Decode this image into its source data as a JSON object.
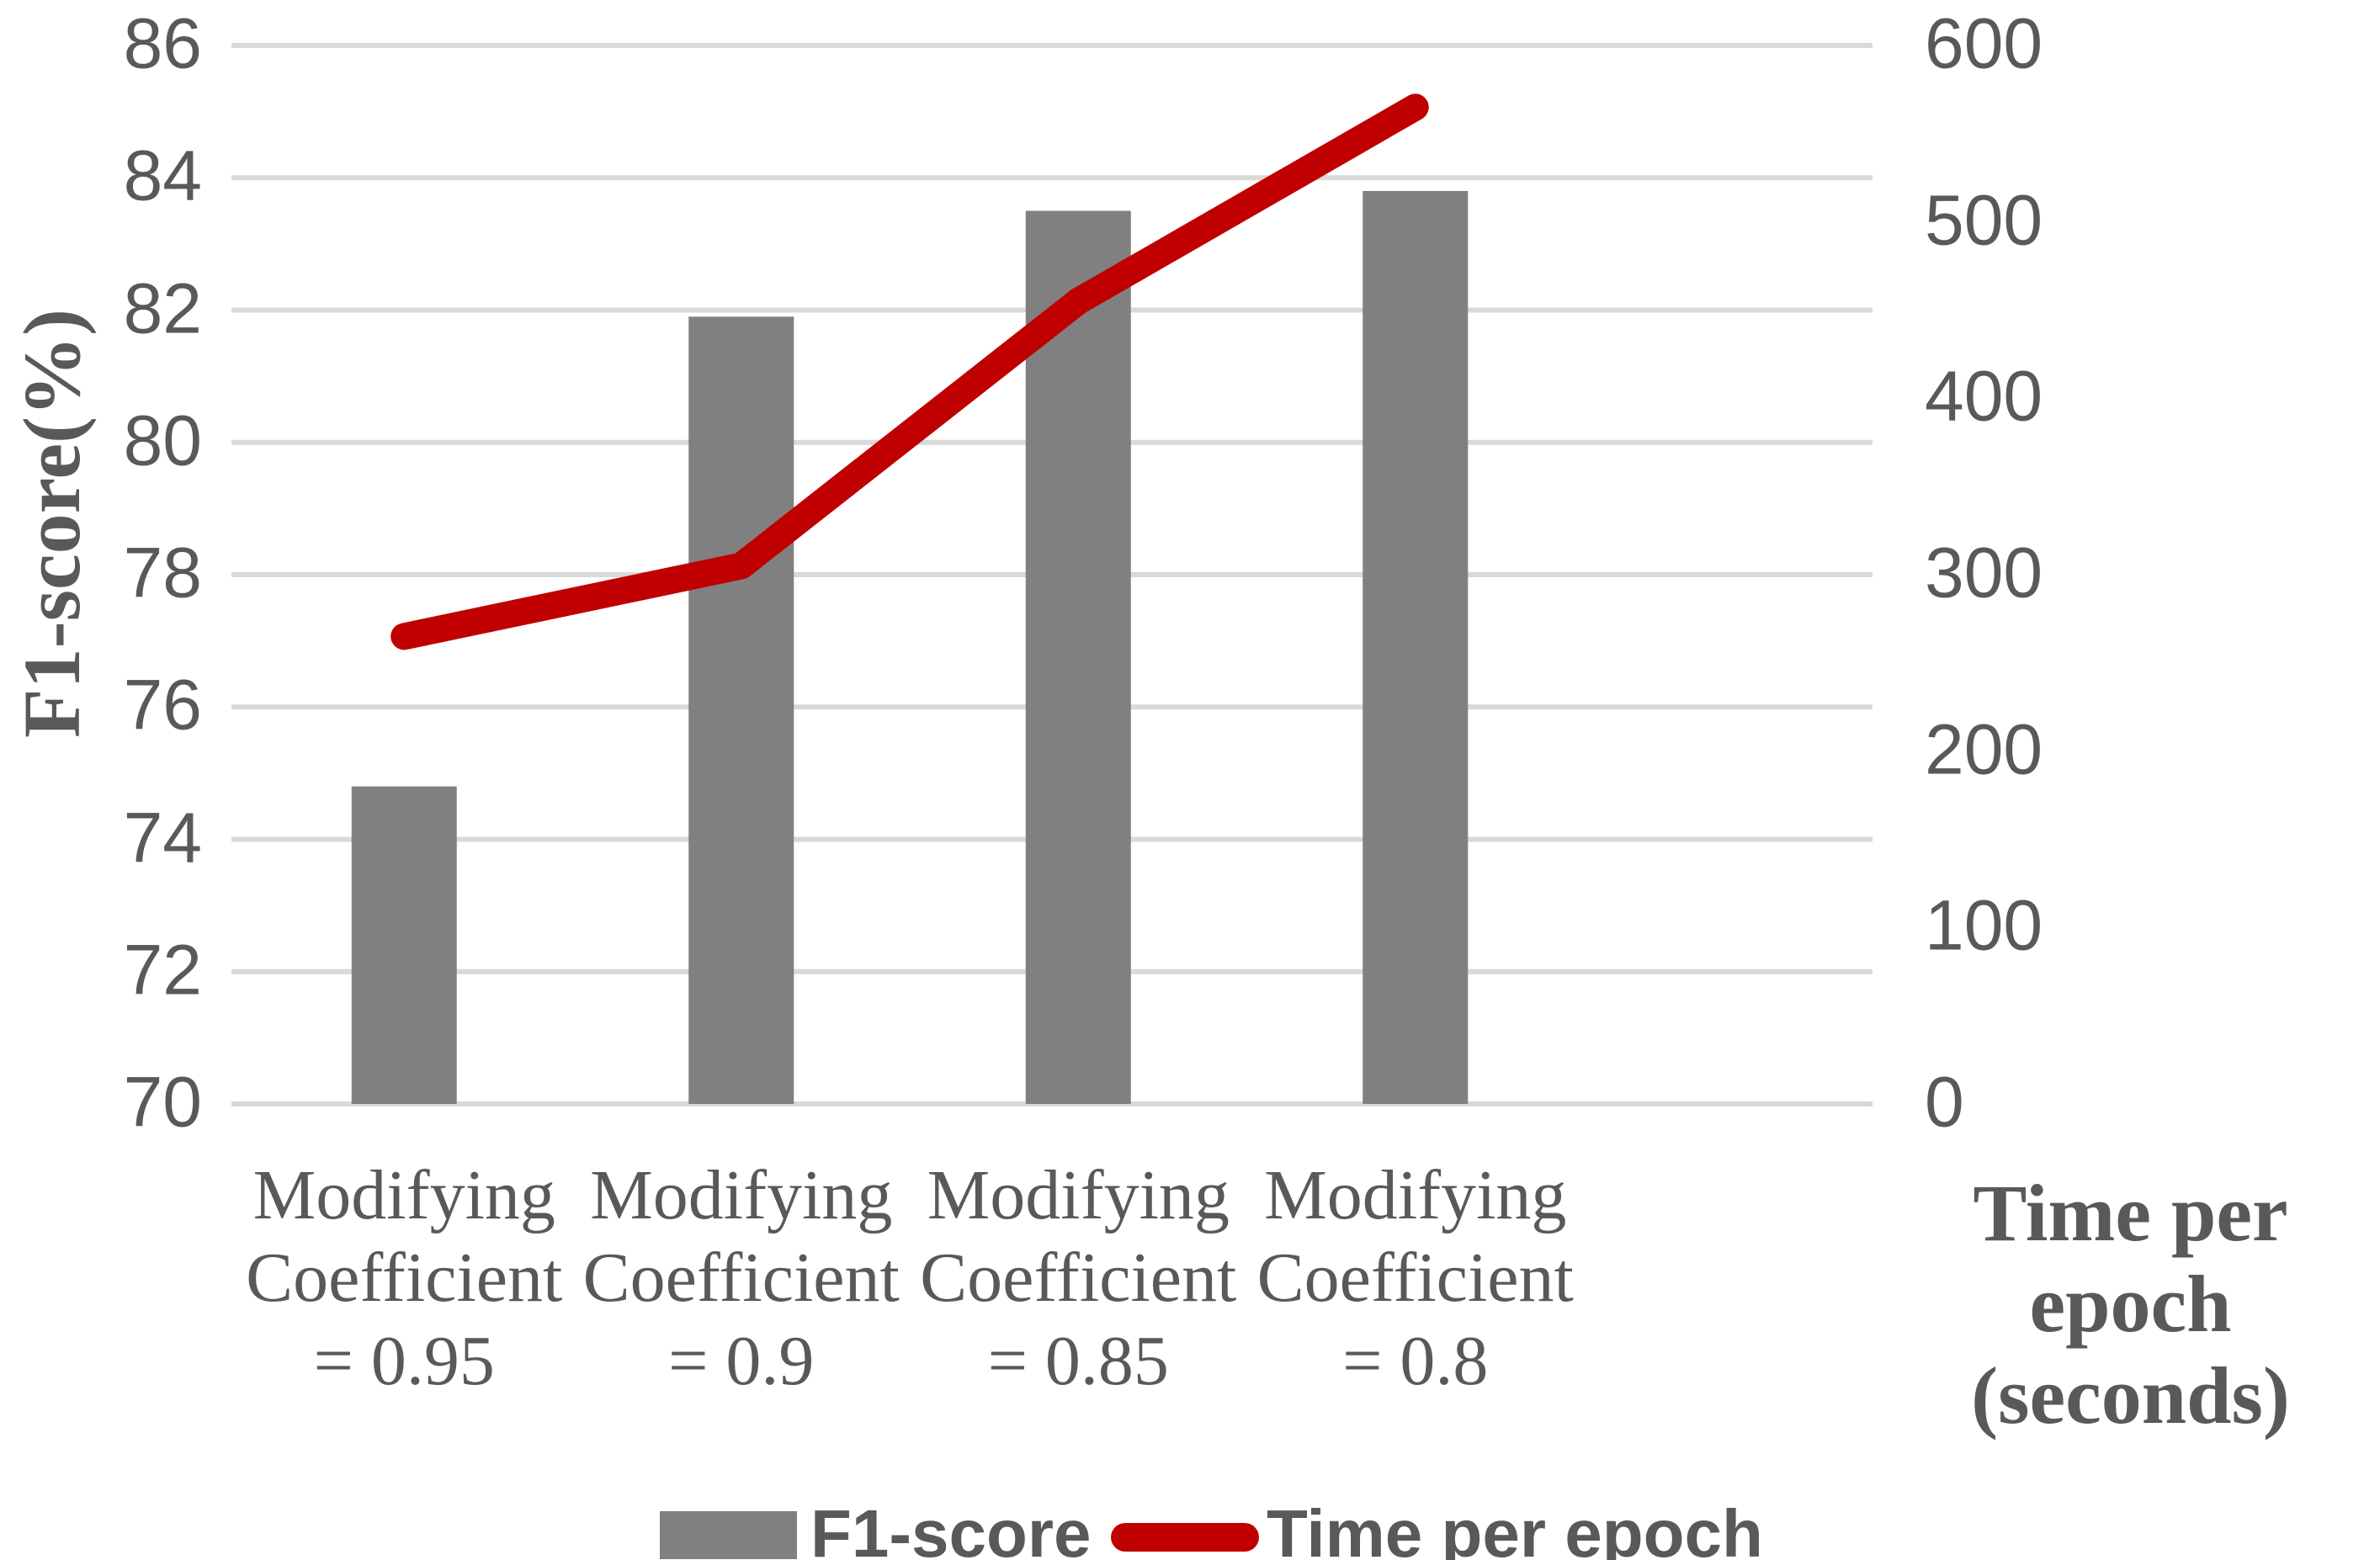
{
  "chart_data": {
    "type": "combo-bar-line",
    "title": "",
    "categories": [
      "Modifying\nCoefficient\n= 0.95",
      "Modifying\nCoefficient\n= 0.9",
      "Modifying\nCoefficient\n= 0.85",
      "Modifying\nCoefficient\n= 0.8"
    ],
    "series": [
      {
        "name": "F1-score",
        "type": "bar",
        "axis": "left",
        "color": "#808080",
        "values": [
          74.8,
          81.9,
          83.5,
          83.8
        ]
      },
      {
        "name": "Time per epoch",
        "type": "line",
        "axis": "right",
        "color": "#C00000",
        "values": [
          265,
          305,
          455,
          565
        ]
      }
    ],
    "axes": {
      "left": {
        "title": "F1-score(%)",
        "min": 70,
        "max": 86,
        "step": 2,
        "ticks": [
          86,
          84,
          82,
          80,
          78,
          76,
          74,
          72,
          70
        ]
      },
      "right": {
        "title": "Time per epoch\n(seconds)",
        "min": 0,
        "max": 600,
        "step": 100,
        "ticks": [
          600,
          500,
          400,
          300,
          200,
          100,
          0
        ]
      }
    },
    "grid": true,
    "legend_position": "bottom",
    "colors": {
      "grid": "#D9D9D9",
      "text": "#595959",
      "background": "#FFFFFF"
    }
  },
  "legend": {
    "items": [
      {
        "label": "F1-score",
        "swatch": "bar",
        "color": "#808080"
      },
      {
        "label": "Time per epoch",
        "swatch": "line",
        "color": "#C00000"
      }
    ]
  }
}
